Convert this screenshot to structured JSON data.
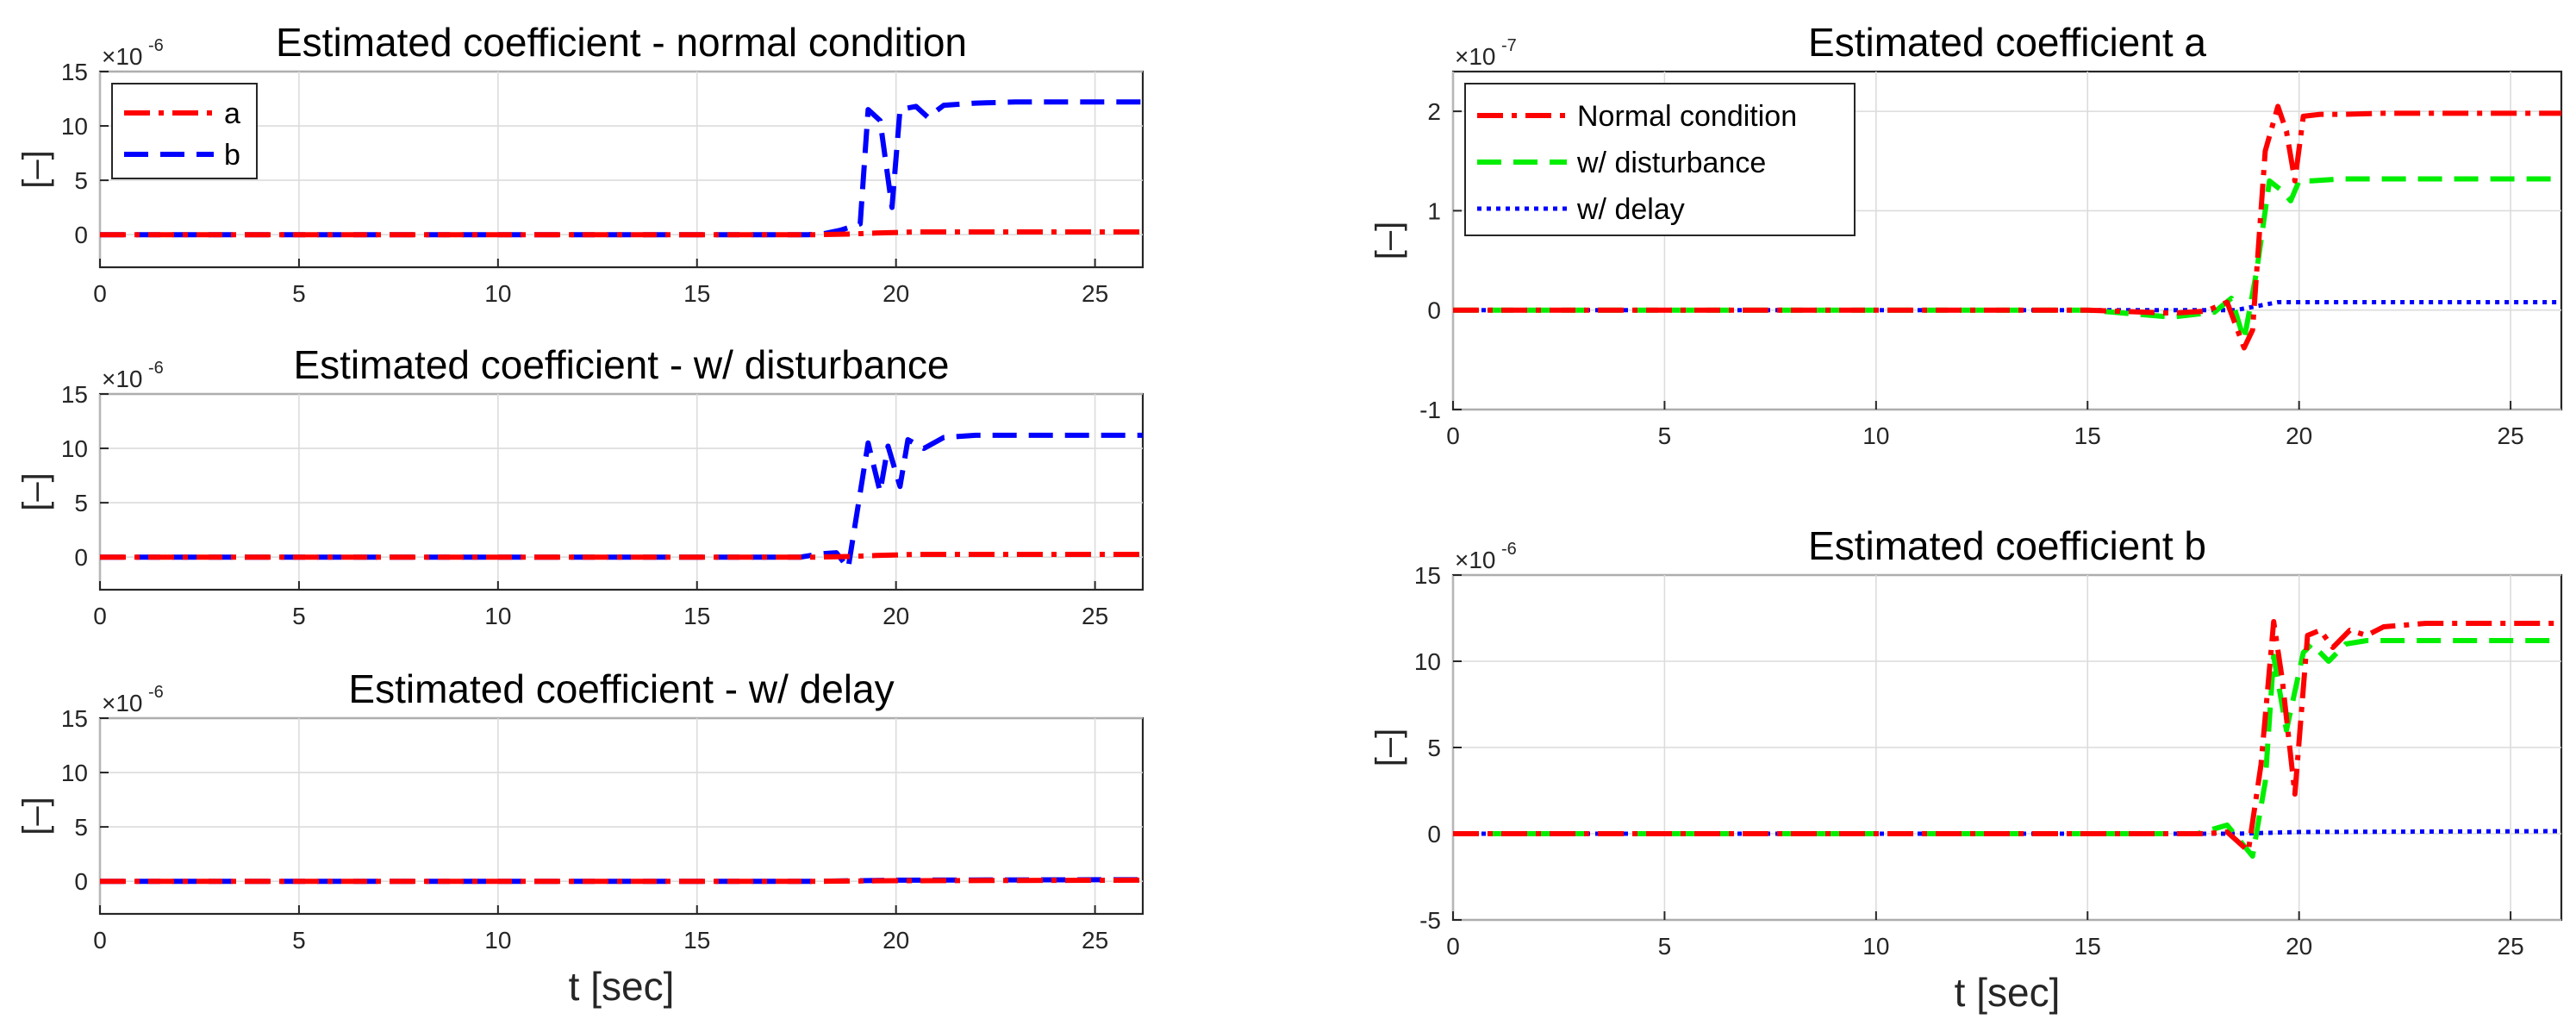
{
  "colors": {
    "a": "#ff0000",
    "b": "#0000ff",
    "normal": "#ff0000",
    "disturbance": "#00ee00",
    "delay": "#0000ff"
  },
  "chart_data": [
    {
      "id": "left-top",
      "type": "line",
      "title": "Estimated coefficient - normal condition",
      "xlabel": "",
      "ylabel": "[–]",
      "exponent_base": "×10",
      "exponent_power": "-6",
      "xlim": [
        0,
        26.2
      ],
      "ylim": [
        -3,
        15
      ],
      "xticks": [
        0,
        5,
        10,
        15,
        20,
        25
      ],
      "yticks": [
        0,
        5,
        10,
        15
      ],
      "legend": {
        "position": "top-left",
        "entries": [
          "a",
          "b"
        ]
      },
      "series": [
        {
          "name": "a",
          "style": "dashdot",
          "color": "#ff0000",
          "x": [
            0,
            18,
            18.8,
            19.5,
            20.5,
            26.2
          ],
          "y": [
            0,
            0,
            0.05,
            0.15,
            0.25,
            0.25
          ]
        },
        {
          "name": "b",
          "style": "dash",
          "color": "#0000ff",
          "x": [
            0,
            17.8,
            18.2,
            18.6,
            19.1,
            19.3,
            19.6,
            19.9,
            20.1,
            20.5,
            20.8,
            21.2,
            22,
            23,
            26.2
          ],
          "y": [
            0,
            0,
            0.1,
            0.4,
            1.0,
            11.5,
            10.5,
            2.5,
            11.5,
            11.8,
            10.8,
            11.9,
            12.1,
            12.2,
            12.2
          ]
        }
      ]
    },
    {
      "id": "left-middle",
      "type": "line",
      "title": "Estimated coefficient - w/ disturbance",
      "xlabel": "",
      "ylabel": "[–]",
      "exponent_base": "×10",
      "exponent_power": "-6",
      "xlim": [
        0,
        26.2
      ],
      "ylim": [
        -3,
        15
      ],
      "xticks": [
        0,
        5,
        10,
        15,
        20,
        25
      ],
      "yticks": [
        0,
        5,
        10,
        15
      ],
      "series": [
        {
          "name": "a",
          "style": "dashdot",
          "color": "#ff0000",
          "x": [
            0,
            18,
            18.8,
            19.5,
            20.5,
            26.2
          ],
          "y": [
            0,
            0,
            0.05,
            0.15,
            0.25,
            0.25
          ]
        },
        {
          "name": "b",
          "style": "dash",
          "color": "#0000ff",
          "x": [
            0,
            17.6,
            18.1,
            18.5,
            18.8,
            19.3,
            19.6,
            19.8,
            20.1,
            20.3,
            20.7,
            21.2,
            22,
            26.2
          ],
          "y": [
            0,
            0,
            0.3,
            0.4,
            -1.0,
            10.5,
            6.0,
            10.2,
            6.5,
            10.8,
            10.0,
            11.0,
            11.2,
            11.2
          ]
        }
      ]
    },
    {
      "id": "left-bottom",
      "type": "line",
      "title": "Estimated coefficient - w/ delay",
      "xlabel": "t [sec]",
      "ylabel": "[–]",
      "exponent_base": "×10",
      "exponent_power": "-6",
      "xlim": [
        0,
        26.2
      ],
      "ylim": [
        -3,
        15
      ],
      "xticks": [
        0,
        5,
        10,
        15,
        20,
        25
      ],
      "yticks": [
        0,
        5,
        10,
        15
      ],
      "series": [
        {
          "name": "a",
          "style": "dashdot",
          "color": "#ff0000",
          "x": [
            0,
            18,
            20,
            26.2
          ],
          "y": [
            0,
            0,
            0.05,
            0.1
          ]
        },
        {
          "name": "b",
          "style": "dash",
          "color": "#0000ff",
          "x": [
            0,
            18,
            20,
            26.2
          ],
          "y": [
            0,
            0,
            0.1,
            0.15
          ]
        }
      ]
    },
    {
      "id": "right-top",
      "type": "line",
      "title": "Estimated coefficient a",
      "xlabel": "",
      "ylabel": "[–]",
      "exponent_base": "×10",
      "exponent_power": "-7",
      "xlim": [
        0,
        26.2
      ],
      "ylim": [
        -1,
        2.4
      ],
      "xticks": [
        0,
        5,
        10,
        15,
        20,
        25
      ],
      "yticks": [
        -1,
        0,
        1,
        2
      ],
      "legend": {
        "position": "top-left",
        "entries": [
          "Normal condition",
          "w/ disturbance",
          "w/ delay"
        ]
      },
      "series": [
        {
          "name": "Normal condition",
          "style": "dashdot",
          "color": "#ff0000",
          "x": [
            0,
            15,
            17,
            17.8,
            18.3,
            18.7,
            18.9,
            19.2,
            19.5,
            19.7,
            19.9,
            20.1,
            20.5,
            21,
            22,
            26.2
          ],
          "y": [
            0,
            0,
            -0.03,
            -0.01,
            0.08,
            -0.38,
            -0.2,
            1.6,
            2.05,
            1.8,
            1.3,
            1.95,
            1.97,
            1.97,
            1.98,
            1.98
          ]
        },
        {
          "name": "w/ disturbance",
          "style": "dash",
          "color": "#00ee00",
          "x": [
            0,
            15,
            17,
            18,
            18.4,
            18.7,
            19.0,
            19.3,
            19.6,
            19.8,
            20.0,
            20.3,
            21,
            26.2
          ],
          "y": [
            0,
            0,
            -0.07,
            -0.02,
            0.12,
            -0.3,
            0.4,
            1.3,
            1.2,
            1.1,
            1.3,
            1.3,
            1.32,
            1.32
          ]
        },
        {
          "name": "w/ delay",
          "style": "dot",
          "color": "#0000ff",
          "x": [
            0,
            18.5,
            19.5,
            26.2
          ],
          "y": [
            0,
            0,
            0.08,
            0.08
          ]
        }
      ]
    },
    {
      "id": "right-bottom",
      "type": "line",
      "title": "Estimated coefficient b",
      "xlabel": "t [sec]",
      "ylabel": "[–]",
      "exponent_base": "×10",
      "exponent_power": "-6",
      "xlim": [
        0,
        26.2
      ],
      "ylim": [
        -5,
        15
      ],
      "xticks": [
        0,
        5,
        10,
        15,
        20,
        25
      ],
      "yticks": [
        -5,
        0,
        5,
        10,
        15
      ],
      "series": [
        {
          "name": "Normal condition",
          "style": "dashdot",
          "color": "#ff0000",
          "x": [
            0,
            17.8,
            18.3,
            18.8,
            19.1,
            19.4,
            19.6,
            19.9,
            20.2,
            20.5,
            20.8,
            21.2,
            21.6,
            22,
            23,
            26.2
          ],
          "y": [
            0,
            0,
            0.1,
            -1.0,
            4.0,
            12.3,
            9.0,
            2.3,
            11.5,
            11.8,
            10.8,
            11.8,
            11.5,
            12.0,
            12.2,
            12.2
          ]
        },
        {
          "name": "w/ disturbance",
          "style": "dash",
          "color": "#00ee00",
          "x": [
            0,
            17.6,
            18.3,
            18.9,
            19.2,
            19.4,
            19.7,
            20.1,
            20.3,
            20.7,
            21.1,
            21.6,
            22,
            26.2
          ],
          "y": [
            0,
            0,
            0.5,
            -1.3,
            3.0,
            10.3,
            6.0,
            10.5,
            11.0,
            10.0,
            11.0,
            11.2,
            11.2,
            11.2
          ]
        },
        {
          "name": "w/ delay",
          "style": "dot",
          "color": "#0000ff",
          "x": [
            0,
            18.5,
            20,
            26.2
          ],
          "y": [
            0,
            0,
            0.1,
            0.15
          ]
        }
      ]
    }
  ]
}
